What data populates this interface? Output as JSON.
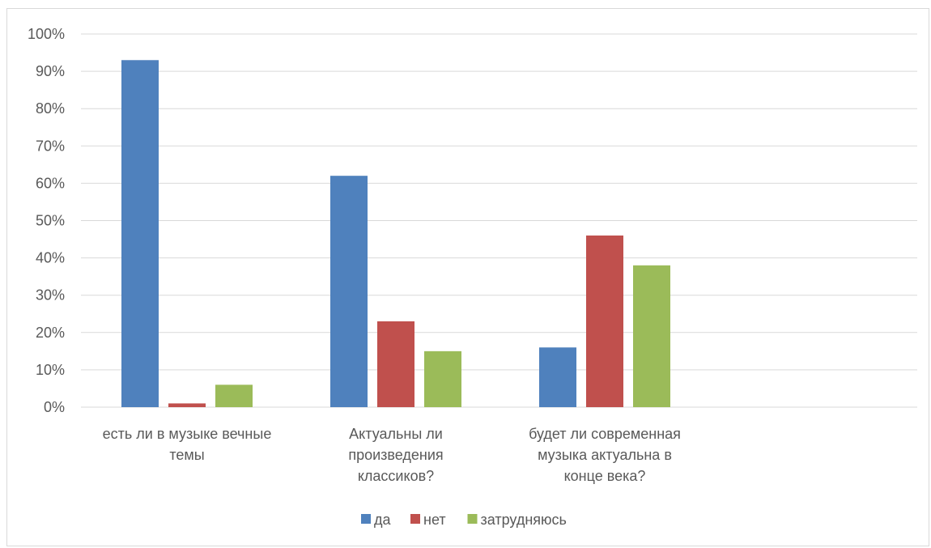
{
  "chart_data": {
    "type": "bar",
    "categories": [
      [
        "есть ли в музыке вечные",
        "темы"
      ],
      [
        "Актуальны ли",
        "произведения",
        "классиков?"
      ],
      [
        "будет ли современная",
        "музыка актуальна в",
        "конце века?"
      ]
    ],
    "series": [
      {
        "name": "да",
        "values": [
          93,
          62,
          16
        ]
      },
      {
        "name": "нет",
        "values": [
          1,
          23,
          46
        ]
      },
      {
        "name": "затрудняюсь",
        "values": [
          6,
          15,
          38
        ]
      }
    ],
    "ylim": [
      0,
      100
    ],
    "y_ticks": [
      "0%",
      "10%",
      "20%",
      "30%",
      "40%",
      "50%",
      "60%",
      "70%",
      "80%",
      "90%",
      "100%"
    ],
    "grid": true,
    "legend_position": "bottom",
    "colors": {
      "series": [
        "#4f81bd",
        "#c0504d",
        "#9bbb59"
      ],
      "grid": "#d9d9d9",
      "axis": "#d9d9d9",
      "text": "#595959"
    }
  }
}
